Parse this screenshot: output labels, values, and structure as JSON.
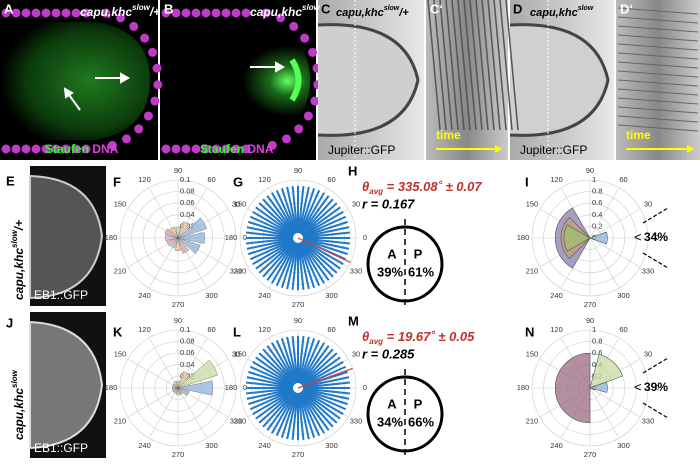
{
  "panels": {
    "A": {
      "label": "A",
      "genotype": "capu,khc",
      "sup": "slow",
      "suffix": "/+",
      "stain1": "Staufen",
      "stain2": "DNA"
    },
    "B": {
      "label": "B",
      "genotype": "capu,khc",
      "sup": "slow",
      "stain1": "Staufen",
      "stain2": "DNA"
    },
    "C": {
      "label": "C",
      "genotype": "capu,khc",
      "sup": "slow",
      "suffix": "/+",
      "marker": "Jupiter::GFP"
    },
    "C2": {
      "label": "C‘",
      "time": "time"
    },
    "D": {
      "label": "D",
      "genotype": "capu,khc",
      "sup": "slow",
      "marker": "Jupiter::GFP"
    },
    "D2": {
      "label": "D‘",
      "time": "time"
    },
    "E": {
      "label": "E",
      "genotype": "capu,khc",
      "sup": "slow",
      "suffix": "/+",
      "marker": "EB1::GFP"
    },
    "J": {
      "label": "J",
      "genotype": "capu,khc",
      "sup": "slow",
      "marker": "EB1::GFP"
    },
    "F": {
      "label": "F",
      "angles": [
        90,
        60,
        30,
        0,
        330,
        300,
        270,
        240,
        210,
        180,
        150,
        120
      ],
      "rmax": 0.1,
      "radii": [
        0.1,
        0.08,
        0.06,
        0.04,
        0.02
      ],
      "rose": [
        0.046,
        0.052,
        0.03,
        0.018,
        0.02,
        0.024,
        0.022,
        0.02,
        0.018,
        0.022,
        0.028,
        0.04
      ],
      "colors": [
        "#8fb3d9",
        "#8fb3d9",
        "#e8c48f",
        "#c9d9a0",
        "#e8c48f",
        "#d9a0a0",
        "#c9b0d9",
        "#e8a890",
        "#a0c0d9",
        "#e8c48f",
        "#d9a0a0",
        "#8fb3d9"
      ]
    },
    "G": {
      "label": "G",
      "angles": [
        90,
        60,
        30,
        0,
        330,
        300,
        270,
        240,
        210,
        180,
        150,
        120
      ],
      "mean_angle": 335.08
    },
    "H": {
      "label": "H",
      "theta": "θ",
      "sub": "avg",
      "value": " = 335.08˚ ± 0.07",
      "r": "r = 0.167",
      "A": "A",
      "P": "P",
      "left": "39%",
      "right": "61%"
    },
    "I": {
      "label": "I",
      "angles": [
        90,
        60,
        30,
        0,
        330,
        300,
        270,
        240,
        210,
        180,
        150,
        120
      ],
      "rmax": 1,
      "radii": [
        1,
        0.8,
        0.6,
        0.4,
        0.2,
        0
      ],
      "sectors": [
        {
          "from": 120,
          "to": 240,
          "r": 0.6,
          "color": "#8a7db0"
        },
        {
          "from": 135,
          "to": 225,
          "r": 0.5,
          "color": "#c8a070"
        },
        {
          "from": 150,
          "to": 210,
          "r": 0.45,
          "color": "#9fbf70"
        },
        {
          "from": -20,
          "to": 20,
          "r": 0.3,
          "color": "#8fb3d9"
        }
      ],
      "pct": "34%",
      "mark": "<"
    },
    "K": {
      "label": "K",
      "angles": [
        90,
        60,
        30,
        0,
        330,
        300,
        270,
        240,
        210,
        180,
        150,
        120
      ],
      "rmax": 0.1,
      "radii": [
        0.1,
        0.08,
        0.06,
        0.04,
        0.02
      ],
      "rose": [
        0.06,
        0.072,
        0.03,
        0.012,
        0.012,
        0.01,
        0.01,
        0.01,
        0.01,
        0.012,
        0.012,
        0.02
      ],
      "colors": [
        "#8fb3d9",
        "#c9d9a0",
        "#e8c48f",
        "#c9d9a0",
        "#e8c48f",
        "#d9a0a0",
        "#c9b0d9",
        "#e8a890",
        "#a0c0d9",
        "#e8c48f",
        "#d9a0a0",
        "#8fb3d9"
      ]
    },
    "L": {
      "label": "L",
      "angles": [
        90,
        60,
        30,
        0,
        330,
        300,
        270,
        240,
        210,
        180,
        150,
        120
      ],
      "mean_angle": 19.67
    },
    "M": {
      "label": "M",
      "theta": "θ",
      "sub": "avg",
      "value": " = 19.67˚ ± 0.05",
      "r": "r = 0.285",
      "A": "A",
      "P": "P",
      "left": "34%",
      "right": "66%"
    },
    "N": {
      "label": "N",
      "angles": [
        90,
        60,
        30,
        0,
        330,
        300,
        270,
        240,
        210,
        180,
        150,
        120
      ],
      "rmax": 1,
      "radii": [
        1,
        0.8,
        0.6,
        0.4,
        0.2,
        0
      ],
      "sectors": [
        {
          "from": 90,
          "to": 270,
          "r": 0.6,
          "color": "#9a6a80"
        },
        {
          "from": 20,
          "to": 75,
          "r": 0.6,
          "color": "#c9d9a0"
        },
        {
          "from": -15,
          "to": 20,
          "r": 0.3,
          "color": "#8fb3d9"
        }
      ],
      "pct": "39%",
      "mark": "<"
    }
  }
}
